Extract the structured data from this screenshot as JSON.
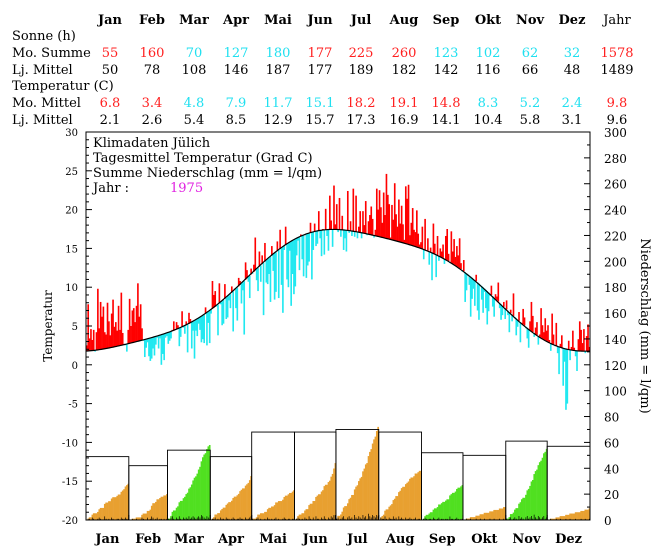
{
  "months": [
    "Jan",
    "Feb",
    "Mar",
    "Apr",
    "Mai",
    "Jun",
    "Jul",
    "Aug",
    "Sep",
    "Okt",
    "Nov",
    "Dez"
  ],
  "year_label": "Jahr",
  "sun_table": {
    "heading": "Sonne (h)",
    "rows": [
      {
        "label": "Mo. Summe",
        "values": [
          "55",
          "160",
          "70",
          "127",
          "180",
          "177",
          "225",
          "260",
          "123",
          "102",
          "62",
          "32"
        ],
        "year": "1578",
        "value_colors": [
          "#ff2020",
          "#ff2020",
          "#20e0f0",
          "#20e0f0",
          "#20e0f0",
          "#ff2020",
          "#ff2020",
          "#ff2020",
          "#20e0f0",
          "#20e0f0",
          "#20e0f0",
          "#20e0f0"
        ],
        "year_color": "#ff2020"
      },
      {
        "label": "Lj. Mittel",
        "values": [
          "50",
          "78",
          "108",
          "146",
          "187",
          "177",
          "189",
          "182",
          "142",
          "116",
          "66",
          "48"
        ],
        "year": "1489"
      }
    ]
  },
  "temp_table": {
    "heading": "Temperatur (C)",
    "rows": [
      {
        "label": "Mo. Mittel",
        "values": [
          "6.8",
          "3.4",
          "4.8",
          "7.9",
          "11.7",
          "15.1",
          "18.2",
          "19.1",
          "14.8",
          "8.3",
          "5.2",
          "2.4"
        ],
        "year": "9.8",
        "value_colors": [
          "#ff2020",
          "#ff2020",
          "#20e0f0",
          "#20e0f0",
          "#20e0f0",
          "#20e0f0",
          "#ff2020",
          "#ff2020",
          "#ff2020",
          "#20e0f0",
          "#20e0f0",
          "#20e0f0"
        ],
        "year_color": "#ff2020"
      },
      {
        "label": "Lj. Mittel",
        "values": [
          "2.1",
          "2.6",
          "5.4",
          "8.5",
          "12.9",
          "15.7",
          "17.3",
          "16.9",
          "14.1",
          "10.4",
          "5.8",
          "3.1"
        ],
        "year": "9.6"
      }
    ]
  },
  "legend": {
    "line1": "Klimadaten Jülich",
    "line2": "Tagesmittel Temperatur (Grad C)",
    "line3": "Summe Niederschlag (mm = l/qm)",
    "year_label": "Jahr :",
    "year_value": "1975",
    "year_color": "#e020e0"
  },
  "colors": {
    "warm": "#ff0000",
    "cold": "#20e8f0",
    "precip_dry": "#e8a030",
    "precip_wet": "#50e020"
  },
  "chart_data": {
    "type": "line",
    "title": "Klimadaten Jülich",
    "ylabel_left": "Temperatur",
    "ylabel_right": "Niederschlag (mm = l/qm)",
    "y_left_range": [
      -20,
      30
    ],
    "y_left_ticks": [
      30,
      25,
      20,
      15,
      10,
      5,
      0,
      -5,
      -10,
      -15,
      -20
    ],
    "y_right_range": [
      0,
      300
    ],
    "y_right_ticks": [
      300,
      280,
      260,
      240,
      220,
      200,
      180,
      160,
      140,
      120,
      100,
      80,
      60,
      40,
      20,
      0
    ],
    "x_categories": [
      "Jan",
      "Feb",
      "Mar",
      "Apr",
      "Mai",
      "Jun",
      "Jul",
      "Aug",
      "Sep",
      "Okt",
      "Nov",
      "Dez"
    ],
    "series": [
      {
        "name": "Tagesmittel Temperatur (Grad C)",
        "daily_means_by_month": [
          [
            2.5,
            7.8,
            3.4,
            4.6,
            3.2,
            4.5,
            1.7,
            4.2,
            9.8,
            4.7,
            8.1,
            6.2,
            7.5,
            4.2,
            3.9,
            8.0,
            5.6,
            3.8,
            6.6,
            8.4,
            4.9,
            5.5,
            4.4,
            7.6,
            4.5,
            9.3,
            4.1,
            2.7,
            2.6,
            1.7,
            4.5
          ],
          [
            8.5,
            5.0,
            7.0,
            7.3,
            5.5,
            7.6,
            10.5,
            6.2,
            7.8,
            4.7,
            3.1,
            1.0,
            2.2,
            2.9,
            1.1,
            0.5,
            0.8,
            2.1,
            1.2,
            2.6,
            3.5,
            2.1,
            3.4,
            0.0,
            1.4,
            0.6,
            3.5,
            3.7
          ],
          [
            2.7,
            3.1,
            3.4,
            4.5,
            5.6,
            4.6,
            5.5,
            5.1,
            2.4,
            3.6,
            6.9,
            4.8,
            4.0,
            5.6,
            1.6,
            6.7,
            5.9,
            2.1,
            4.4,
            0.8,
            4.4,
            3.7,
            5.3,
            4.5,
            2.9,
            3.3,
            2.8,
            7.4,
            2.5,
            5.4,
            2.8
          ],
          [
            6.6,
            10.8,
            9.0,
            9.5,
            7.6,
            3.8,
            10.5,
            7.8,
            5.1,
            5.3,
            10.4,
            5.9,
            6.1,
            8.3,
            7.3,
            10.1,
            4.3,
            9.8,
            7.3,
            5.7,
            11.2,
            10.8,
            7.9,
            9.6,
            3.9,
            13.2,
            12.2,
            10.7,
            8.6,
            12.4
          ],
          [
            11.8,
            12.9,
            16.4,
            10.9,
            9.5,
            14.6,
            10.7,
            14.1,
            6.4,
            15.7,
            10.6,
            10.4,
            11.7,
            8.1,
            15.3,
            12.1,
            8.4,
            9.4,
            15.9,
            8.6,
            17.4,
            10.3,
            6.7,
            14.8,
            17.8,
            11.0,
            10.0,
            14.7,
            7.6,
            11.7,
            9.1
          ],
          [
            10.1,
            14.1,
            16.0,
            12.2,
            16.8,
            13.6,
            11.4,
            16.8,
            11.2,
            12.8,
            13.3,
            18.3,
            11.0,
            14.8,
            18.2,
            15.3,
            15.6,
            19.8,
            16.3,
            14.0,
            17.5,
            14.2,
            20.1,
            16.6,
            14.7,
            21.8,
            18.6,
            15.2,
            23.1,
            18.1
          ],
          [
            20.7,
            17.1,
            21.5,
            16.5,
            19.2,
            14.8,
            16.3,
            14.6,
            22.4,
            17.0,
            18.5,
            16.6,
            22.7,
            16.5,
            21.8,
            16.3,
            17.8,
            19.8,
            16.3,
            19.8,
            18.0,
            21.1,
            16.7,
            18.5,
            19.3,
            20.4,
            18.8,
            16.4,
            17.4,
            22.7,
            20.0
          ],
          [
            22.5,
            20.3,
            18.3,
            22.2,
            19.3,
            24.6,
            21.9,
            20.7,
            16.4,
            20.6,
            18.7,
            23.4,
            19.4,
            17.8,
            21.3,
            18.2,
            20.5,
            18.1,
            16.1,
            23.0,
            21.4,
            23.2,
            16.7,
            18.3,
            20.2,
            17.4,
            17.1,
            19.9,
            16.9,
            15.5,
            15.8
          ],
          [
            17.8,
            13.6,
            18.8,
            14.7,
            16.3,
            12.9,
            15.1,
            10.9,
            18.2,
            15.6,
            11.3,
            16.6,
            13.4,
            15.0,
            14.6,
            15.5,
            13.0,
            16.6,
            17.5,
            14.3,
            13.1,
            17.2,
            14.6,
            16.2,
            13.9,
            15.3,
            14.1,
            16.3,
            13.1,
            12.0
          ],
          [
            13.5,
            8.1,
            9.6,
            11.5,
            10.3,
            6.2,
            8.5,
            9.8,
            7.6,
            11.6,
            7.0,
            5.8,
            10.1,
            8.4,
            6.7,
            9.4,
            7.3,
            5.2,
            6.9,
            8.9,
            10.2,
            7.5,
            6.2,
            9.1,
            8.8,
            10.6,
            7.3,
            5.8,
            6.4,
            8.1,
            5.9
          ],
          [
            8.3,
            6.4,
            4.2,
            7.1,
            5.6,
            9.2,
            6.0,
            3.8,
            4.9,
            6.8,
            2.9,
            5.4,
            7.2,
            6.1,
            4.7,
            3.4,
            2.2,
            5.6,
            8.1,
            6.3,
            3.6,
            4.8,
            5.5,
            2.6,
            3.9,
            7.3,
            5.1,
            4.2,
            6.0,
            4.4
          ],
          [
            5.1,
            3.2,
            1.8,
            6.6,
            3.9,
            2.4,
            5.4,
            1.5,
            -1.2,
            2.7,
            3.8,
            -2.7,
            0.4,
            -5.8,
            -5.0,
            3.1,
            0.6,
            2.3,
            4.4,
            2.2,
            1.1,
            -0.8,
            3.3,
            5.6,
            4.5,
            2.8,
            4.6,
            1.5,
            3.7,
            5.2,
            2.3
          ]
        ]
      },
      {
        "name": "Langjähriges Mittel Temperatur",
        "style": "smooth black line"
      }
    ],
    "precip_bars": {
      "name": "Summe Niederschlag (mm = l/qm)",
      "monthly_totals": [
        28,
        20,
        58,
        34,
        23,
        44,
        72,
        38,
        27,
        10,
        55,
        9
      ],
      "longterm_monthly": [
        49,
        42,
        54,
        49,
        68,
        68,
        70,
        68,
        52,
        50,
        61,
        57
      ],
      "wet_months": [
        "Mar",
        "Sep",
        "Nov"
      ],
      "daily_mm_by_month": [
        [
          0,
          1,
          1,
          0,
          2,
          1,
          0,
          0,
          1,
          2,
          1,
          0,
          0,
          3,
          1,
          0,
          1,
          0,
          2,
          1,
          0,
          0,
          1,
          1,
          0,
          2,
          1,
          1,
          2,
          1,
          1
        ],
        [
          0,
          0,
          1,
          0,
          0,
          1,
          0,
          0,
          0,
          2,
          1,
          0,
          0,
          2,
          0,
          1,
          3,
          2,
          0,
          1,
          2,
          0,
          1,
          1,
          0,
          1,
          0,
          1
        ],
        [
          1,
          0,
          2,
          3,
          1,
          0,
          2,
          1,
          3,
          1,
          0,
          2,
          1,
          2,
          1,
          3,
          1,
          2,
          3,
          2,
          1,
          2,
          3,
          2,
          4,
          3,
          2,
          1,
          3,
          2,
          1
        ],
        [
          0,
          1,
          1,
          2,
          0,
          1,
          0,
          2,
          1,
          1,
          0,
          2,
          1,
          1,
          0,
          1,
          2,
          1,
          0,
          1,
          1,
          2,
          1,
          1,
          0,
          2,
          1,
          1,
          2,
          3
        ],
        [
          1,
          0,
          0,
          1,
          2,
          0,
          1,
          0,
          0,
          1,
          0,
          2,
          1,
          0,
          1,
          0,
          1,
          2,
          0,
          1,
          0,
          0,
          1,
          2,
          1,
          0,
          1,
          1,
          0,
          1,
          1
        ],
        [
          0,
          1,
          2,
          1,
          0,
          1,
          0,
          2,
          1,
          0,
          3,
          1,
          0,
          2,
          0,
          3,
          1,
          1,
          0,
          2,
          1,
          3,
          1,
          0,
          2,
          1,
          3,
          2,
          4,
          4
        ],
        [
          1,
          2,
          0,
          1,
          2,
          3,
          1,
          0,
          2,
          3,
          1,
          2,
          0,
          4,
          2,
          1,
          3,
          2,
          1,
          4,
          2,
          3,
          1,
          5,
          3,
          2,
          4,
          3,
          2,
          4,
          3
        ],
        [
          0,
          2,
          1,
          1,
          3,
          1,
          0,
          2,
          1,
          1,
          3,
          1,
          2,
          0,
          3,
          1,
          2,
          1,
          0,
          2,
          1,
          1,
          2,
          1,
          0,
          1,
          2,
          0,
          1,
          1,
          0
        ],
        [
          0,
          1,
          2,
          1,
          0,
          1,
          1,
          0,
          2,
          1,
          0,
          1,
          2,
          0,
          1,
          1,
          0,
          1,
          1,
          0,
          3,
          1,
          1,
          0,
          1,
          2,
          1,
          0,
          1,
          1
        ],
        [
          0,
          0,
          1,
          0,
          0,
          1,
          0,
          0,
          0,
          1,
          0,
          0,
          1,
          0,
          0,
          1,
          0,
          0,
          0,
          1,
          0,
          0,
          1,
          0,
          0,
          0,
          1,
          0,
          0,
          1,
          0
        ],
        [
          1,
          0,
          1,
          2,
          0,
          1,
          2,
          1,
          0,
          3,
          1,
          2,
          1,
          0,
          2,
          3,
          1,
          2,
          3,
          1,
          4,
          2,
          1,
          3,
          2,
          1,
          2,
          3,
          1,
          2
        ],
        [
          0,
          0,
          1,
          0,
          0,
          0,
          1,
          0,
          0,
          1,
          0,
          0,
          0,
          1,
          0,
          0,
          1,
          0,
          0,
          0,
          1,
          0,
          0,
          0,
          1,
          0,
          0,
          1,
          0,
          0,
          1
        ]
      ]
    }
  }
}
